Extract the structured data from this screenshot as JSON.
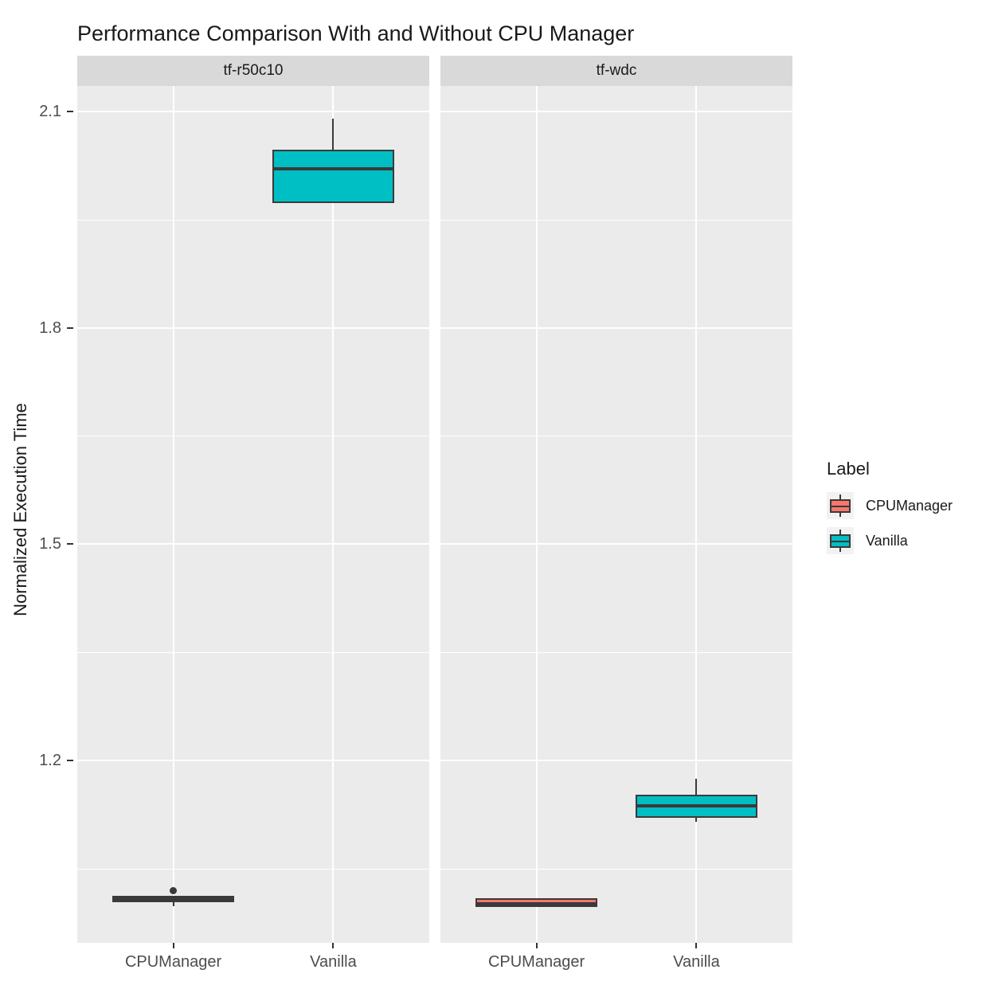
{
  "title": "Performance Comparison With and Without CPU Manager",
  "chart_data": {
    "type": "boxplot",
    "title": "Performance Comparison With and Without CPU Manager",
    "xlabel": "",
    "ylabel": "Normalized Execution Time",
    "ylim": [
      0.945,
      2.135
    ],
    "y_major_ticks": [
      2.1,
      1.8,
      1.5,
      1.2
    ],
    "y_tick_labels": [
      "2.1",
      "1.8",
      "1.5",
      "1.2"
    ],
    "y_minor_ticks": [
      1.95,
      1.65,
      1.35,
      1.05
    ],
    "grid": "on",
    "categories": [
      "CPUManager",
      "Vanilla"
    ],
    "facets": [
      {
        "name": "tf-r50c10",
        "boxes": [
          {
            "category": "CPUManager",
            "series": "CPUManager",
            "color": "#F8766D",
            "whisker_low": 0.998,
            "q1": 1.006,
            "median": 1.008,
            "q3": 1.01,
            "whisker_high": 1.01,
            "outliers": [
              1.02
            ]
          },
          {
            "category": "Vanilla",
            "series": "Vanilla",
            "color": "#00BFC4",
            "whisker_low": 1.975,
            "q1": 1.975,
            "median": 2.02,
            "q3": 2.045,
            "whisker_high": 2.09,
            "outliers": []
          }
        ]
      },
      {
        "name": "tf-wdc",
        "boxes": [
          {
            "category": "CPUManager",
            "series": "CPUManager",
            "color": "#F8766D",
            "whisker_low": 0.998,
            "q1": 0.999,
            "median": 1.001,
            "q3": 1.007,
            "whisker_high": 1.009,
            "outliers": []
          },
          {
            "category": "Vanilla",
            "series": "Vanilla",
            "color": "#00BFC4",
            "whisker_low": 1.115,
            "q1": 1.123,
            "median": 1.137,
            "q3": 1.15,
            "whisker_high": 1.175,
            "outliers": []
          }
        ]
      }
    ],
    "legend": {
      "title": "Label",
      "position": "right",
      "entries": [
        {
          "label": "CPUManager",
          "color": "#F8766D"
        },
        {
          "label": "Vanilla",
          "color": "#00BFC4"
        }
      ]
    },
    "style": {
      "panel_bg": "#EBEBEB",
      "strip_bg": "#D9D9D9",
      "gridline_color": "#FFFFFF",
      "box_border_color": "#3A3A3A",
      "tick_mark_color": "#333333",
      "axis_text_color": "#4D4D4D",
      "text_color": "#1A1A1A"
    }
  }
}
